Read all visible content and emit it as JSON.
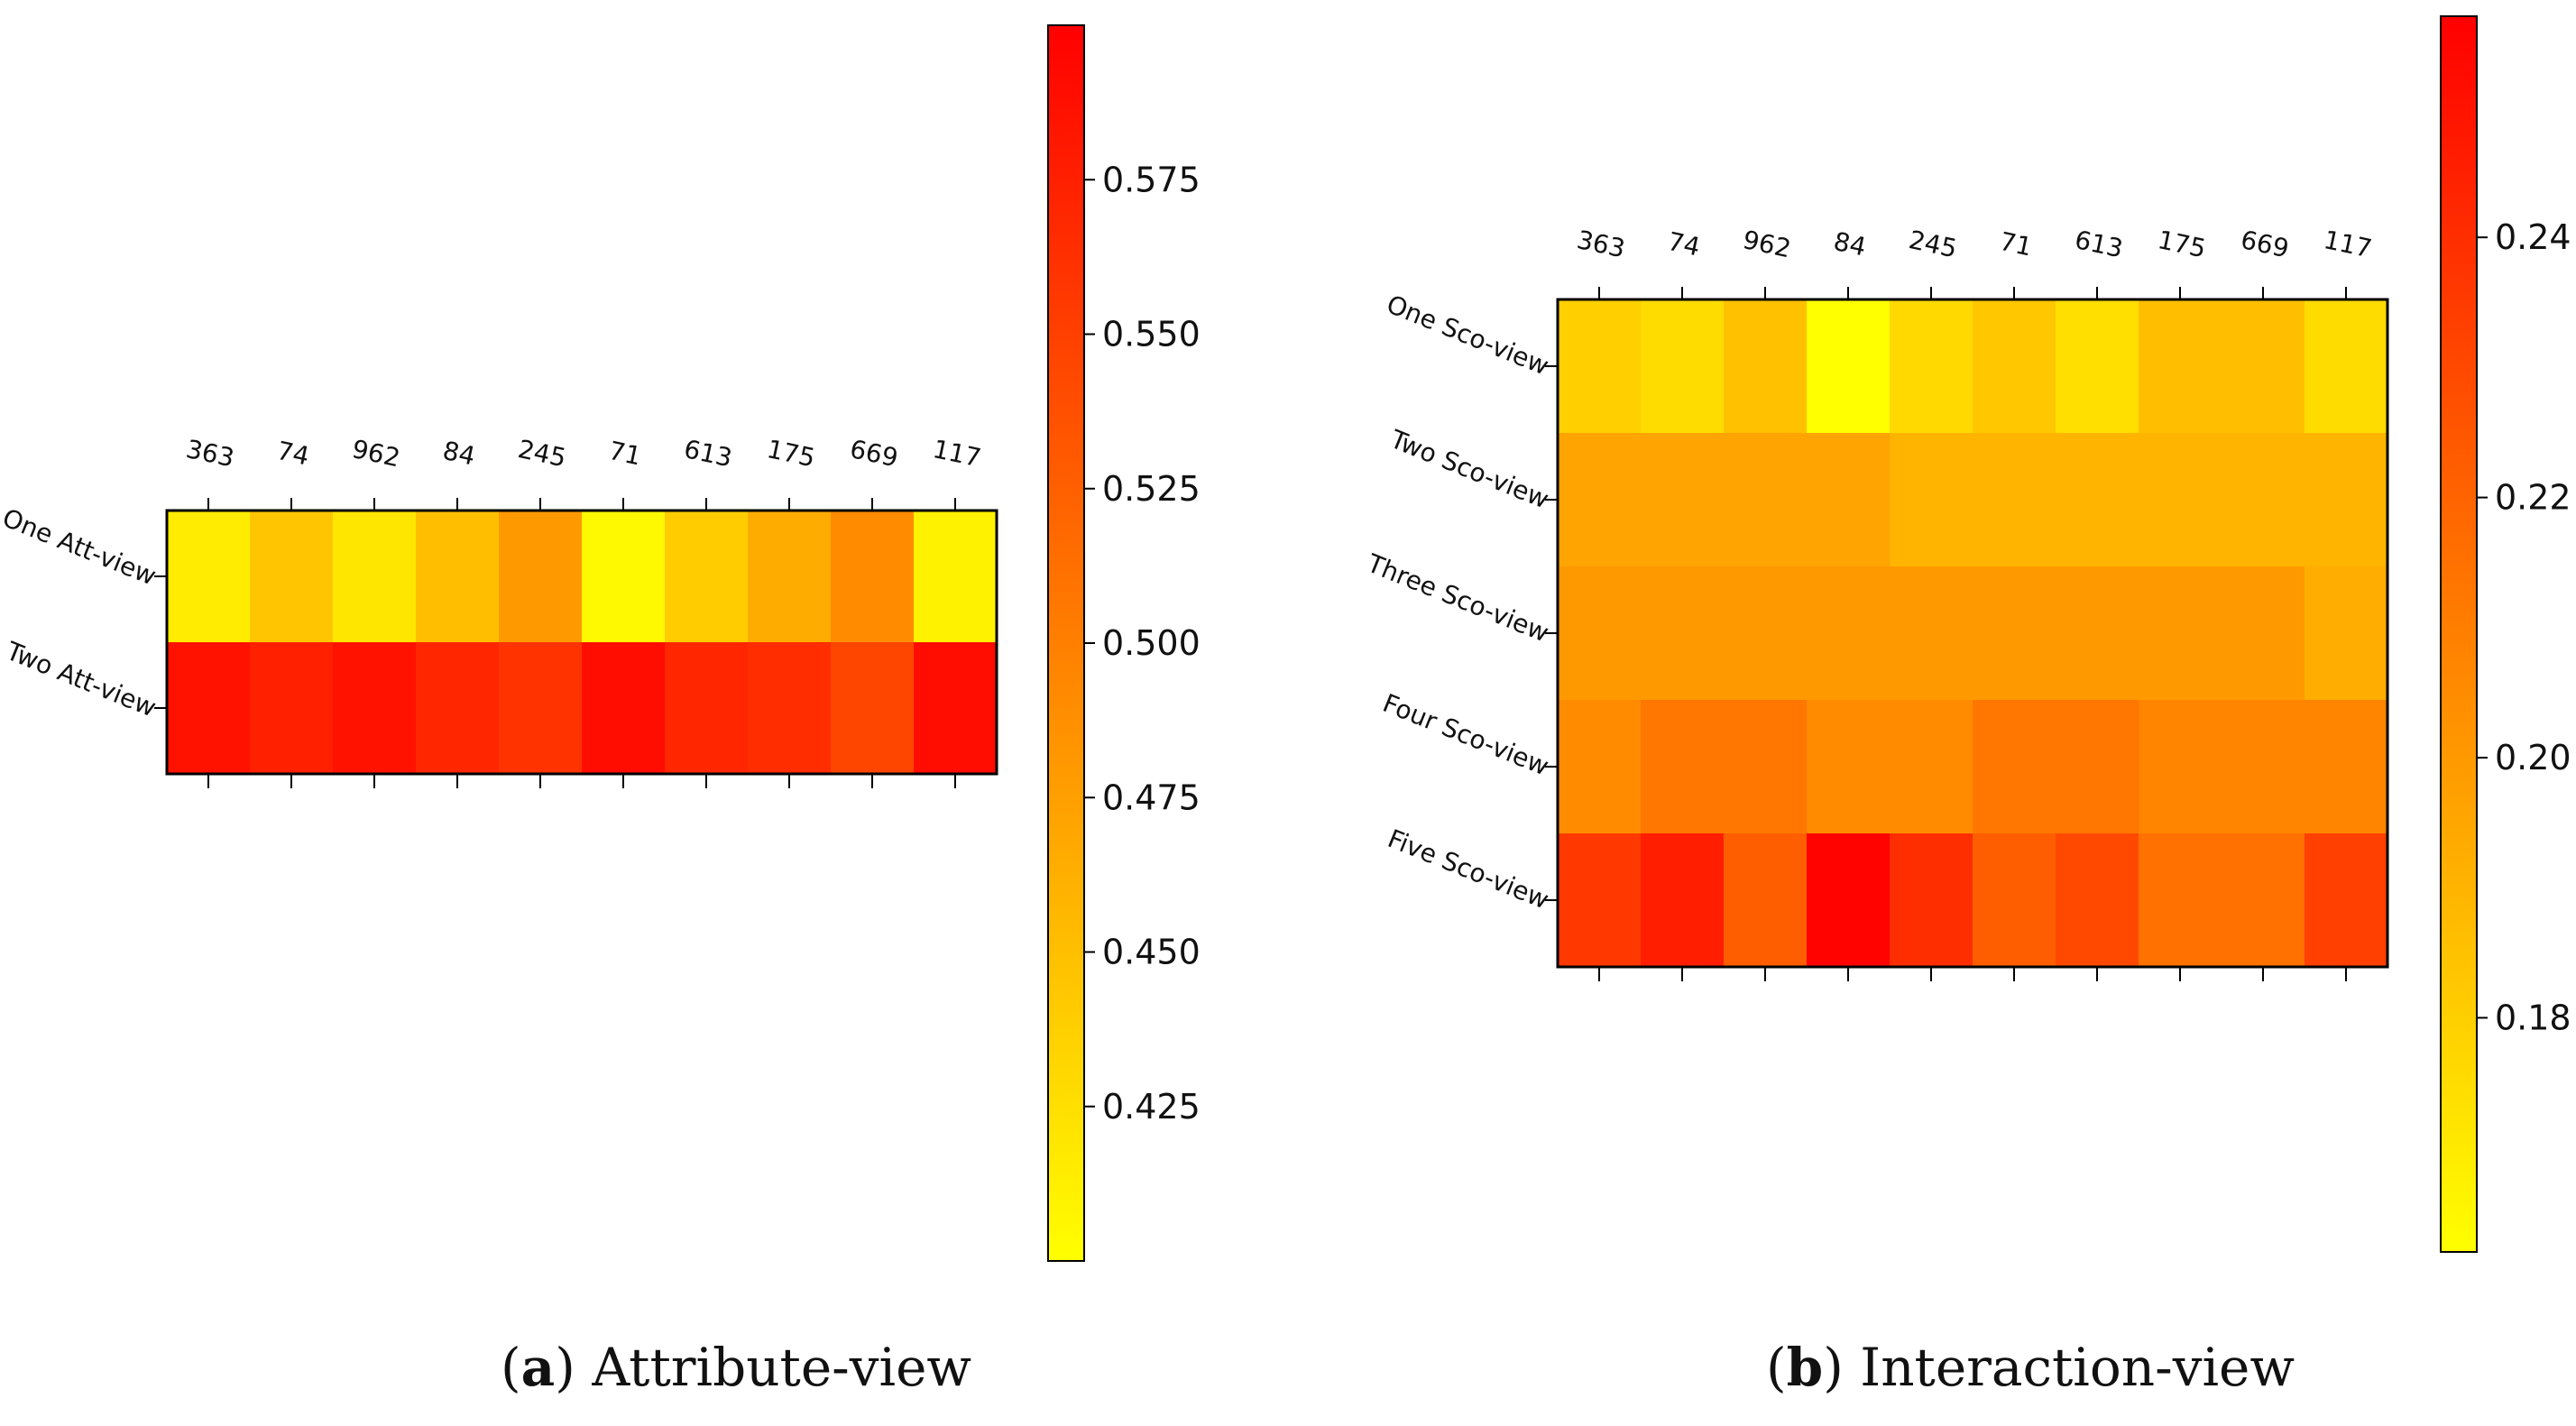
{
  "chart_data": [
    {
      "type": "heatmap",
      "panel": "a",
      "caption_letter": "a",
      "caption_text": "Attribute-view",
      "x_tick_labels": [
        "363",
        "74",
        "962",
        "84",
        "245",
        "71",
        "613",
        "175",
        "669",
        "117"
      ],
      "y_tick_labels": [
        "One Att-view",
        "Two Att-view"
      ],
      "values": [
        [
          0.415,
          0.445,
          0.42,
          0.45,
          0.48,
          0.405,
          0.44,
          0.465,
          0.49,
          0.41
        ],
        [
          0.585,
          0.575,
          0.585,
          0.57,
          0.56,
          0.59,
          0.57,
          0.565,
          0.545,
          0.59
        ]
      ],
      "colormap": "autumn_r",
      "colorbar": {
        "vmin": 0.4,
        "vmax": 0.6,
        "ticks": [
          "0.425",
          "0.450",
          "0.475",
          "0.500",
          "0.525",
          "0.550",
          "0.575"
        ]
      }
    },
    {
      "type": "heatmap",
      "panel": "b",
      "caption_letter": "b",
      "caption_text": "Interaction-view",
      "x_tick_labels": [
        "363",
        "74",
        "962",
        "84",
        "245",
        "71",
        "613",
        "175",
        "669",
        "117"
      ],
      "y_tick_labels": [
        "One Sco-view",
        "Two Sco-view",
        "Three Sco-view",
        "Four Sco-view",
        "Five Sco-view"
      ],
      "values": [
        [
          0.18,
          0.175,
          0.185,
          0.162,
          0.176,
          0.183,
          0.174,
          0.186,
          0.186,
          0.175
        ],
        [
          0.196,
          0.196,
          0.196,
          0.196,
          0.19,
          0.19,
          0.19,
          0.19,
          0.19,
          0.19
        ],
        [
          0.2,
          0.2,
          0.2,
          0.2,
          0.2,
          0.2,
          0.2,
          0.2,
          0.2,
          0.192
        ],
        [
          0.205,
          0.213,
          0.213,
          0.205,
          0.205,
          0.213,
          0.213,
          0.208,
          0.208,
          0.208
        ],
        [
          0.236,
          0.246,
          0.222,
          0.256,
          0.24,
          0.222,
          0.23,
          0.215,
          0.215,
          0.233
        ]
      ],
      "colormap": "autumn_r",
      "colorbar": {
        "vmin": 0.162,
        "vmax": 0.257,
        "ticks": [
          "0.18",
          "0.20",
          "0.22",
          "0.24"
        ]
      }
    }
  ]
}
